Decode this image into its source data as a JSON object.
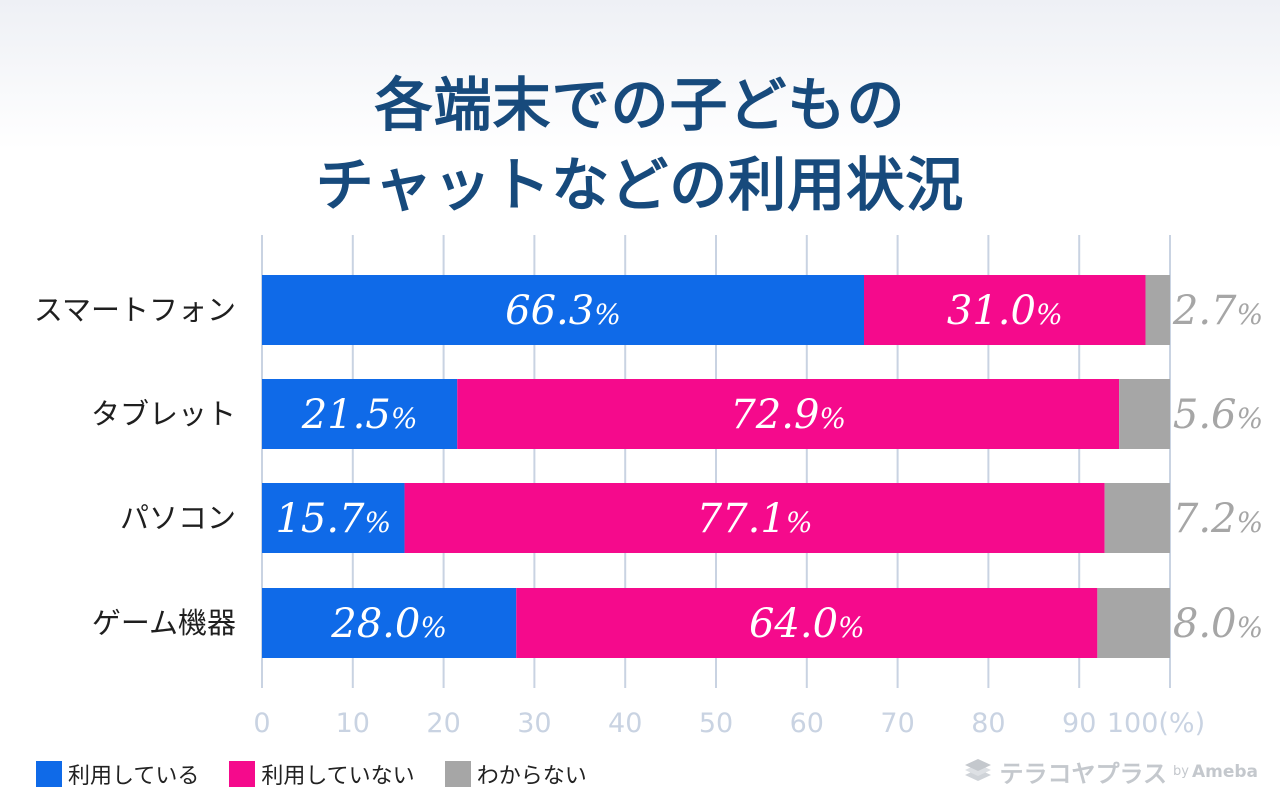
{
  "title": {
    "line1": "各端末での子どもの",
    "line2": "チャットなどの利用状況"
  },
  "colors": {
    "using": "#0f6ae8",
    "not_using": "#f50a8c",
    "unknown": "#a6a6a6",
    "grid": "#c9d3e2",
    "title": "#174a7c"
  },
  "chart_data": {
    "type": "bar",
    "orientation": "horizontal",
    "stacked": true,
    "categories": [
      "スマートフォン",
      "タブレット",
      "パソコン",
      "ゲーム機器"
    ],
    "series": [
      {
        "name": "利用している",
        "values": [
          66.3,
          21.5,
          15.7,
          28.0
        ],
        "color": "#0f6ae8"
      },
      {
        "name": "利用していない",
        "values": [
          31.0,
          72.9,
          77.1,
          64.0
        ],
        "color": "#f50a8c"
      },
      {
        "name": "わからない",
        "values": [
          2.7,
          5.6,
          7.2,
          8.0
        ],
        "color": "#a6a6a6"
      }
    ],
    "value_suffix": "%",
    "x_ticks": [
      "0",
      "10",
      "20",
      "30",
      "40",
      "50",
      "60",
      "70",
      "80",
      "90",
      "100(%)"
    ],
    "xlim": [
      0,
      100
    ],
    "grid": true,
    "title": "各端末での子どものチャットなどの利用状況"
  },
  "legend": {
    "items": [
      {
        "label": "利用している",
        "color": "#0f6ae8"
      },
      {
        "label": "利用していない",
        "color": "#f50a8c"
      },
      {
        "label": "わからない",
        "color": "#a6a6a6"
      }
    ]
  },
  "logo": {
    "name": "テラコヤプラス",
    "by": "by",
    "brand": "Ameba"
  }
}
